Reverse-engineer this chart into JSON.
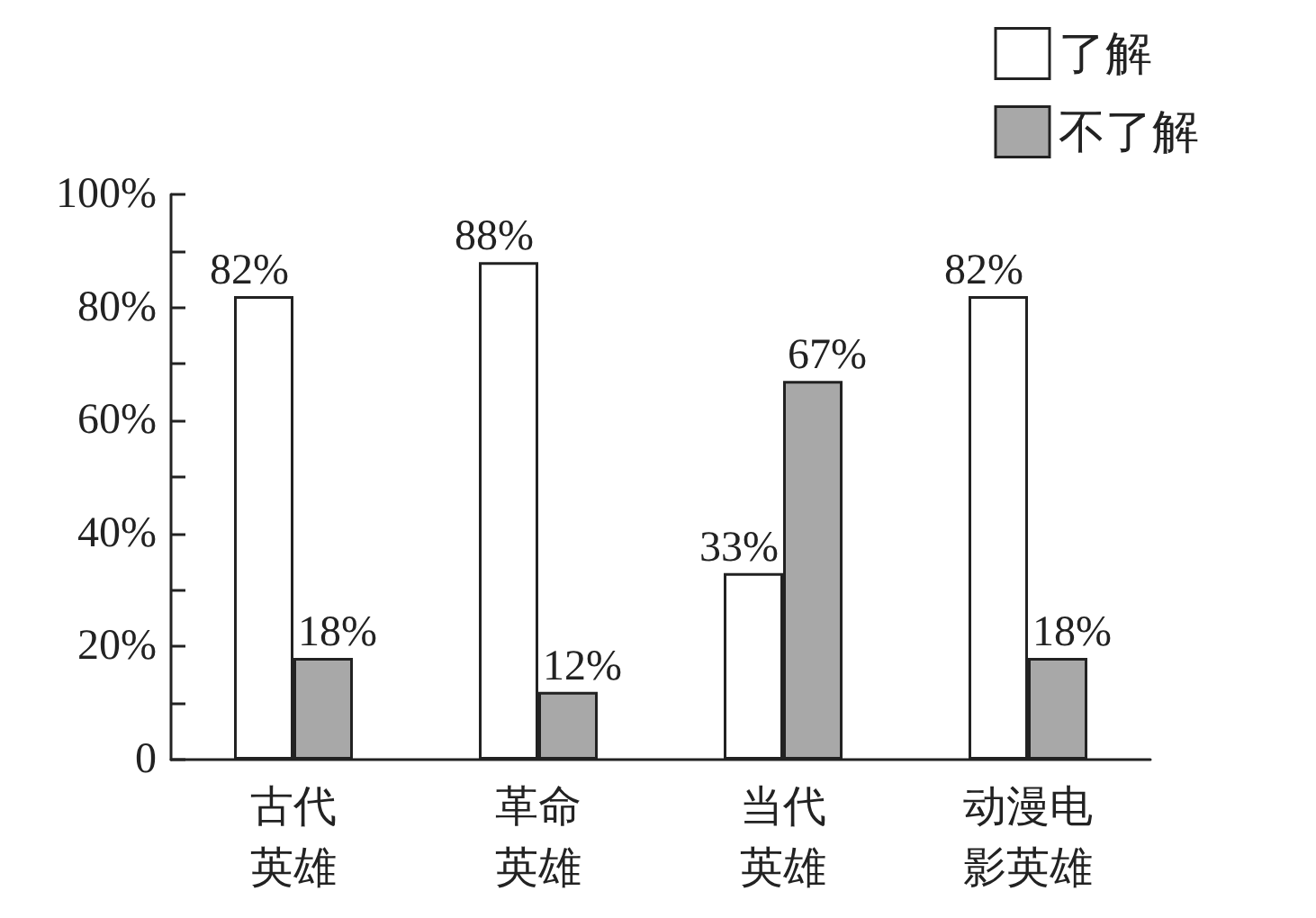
{
  "chart_data": {
    "type": "bar",
    "categories": [
      "古代英雄",
      "革命英雄",
      "当代英雄",
      "动漫电影英雄"
    ],
    "series": [
      {
        "name": "了解",
        "color": "#ffffff",
        "values": [
          82,
          88,
          33,
          82
        ],
        "value_labels": [
          "82%",
          "88%",
          "33%",
          "82%"
        ]
      },
      {
        "name": "不了解",
        "color": "#a8a8a8",
        "values": [
          18,
          12,
          67,
          18
        ],
        "value_labels": [
          "18%",
          "12%",
          "67%",
          "18%"
        ]
      }
    ],
    "ylim": [
      0,
      100
    ],
    "yticks": [
      0,
      {
        "value": 10,
        "label": null
      },
      {
        "value": 20,
        "label": "20%"
      },
      {
        "value": 30,
        "label": null
      },
      {
        "value": 40,
        "label": "40%"
      },
      {
        "value": 50,
        "label": null
      },
      {
        "value": 60,
        "label": "60%"
      },
      {
        "value": 70,
        "label": null
      },
      {
        "value": 80,
        "label": "80%"
      },
      {
        "value": 90,
        "label": null
      },
      {
        "value": 100,
        "label": "100%"
      }
    ],
    "grid": false,
    "legend": "top right"
  }
}
